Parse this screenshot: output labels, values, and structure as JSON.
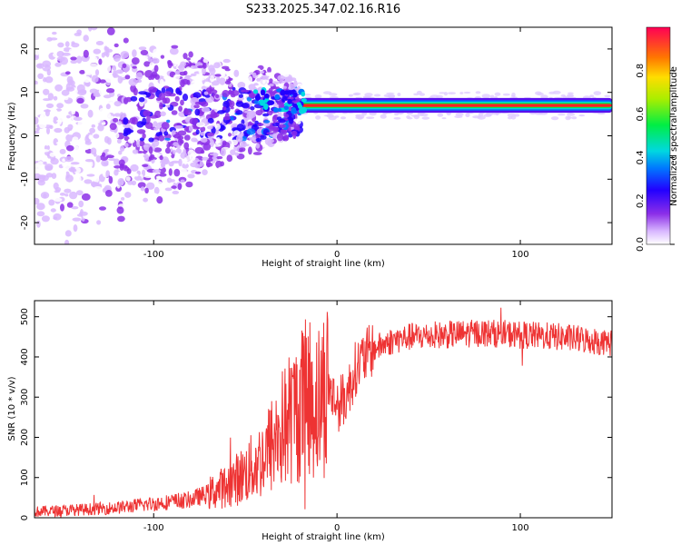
{
  "title": "S233.2025.347.02.16.R16",
  "chart_data": [
    {
      "type": "heatmap",
      "name": "spectrogram",
      "xlabel": "Height of straight line (km)",
      "ylabel": "Frequency (Hz)",
      "xlim": [
        -165,
        150
      ],
      "ylim": [
        -25,
        25
      ],
      "xticks": [
        -100,
        0,
        100
      ],
      "yticks": [
        -20,
        -10,
        0,
        10,
        20
      ],
      "colorbar": {
        "label": "Normalized spectral amplitude",
        "range": [
          0,
          1
        ],
        "ticks": [
          0.0,
          0.2,
          0.4,
          0.6,
          0.8
        ]
      },
      "signal_band": {
        "stable_from_km": -20,
        "frequency_hz": 7,
        "note": "narrow strong carrier near 7 Hz for heights > -20 km; diffuse noise below"
      }
    },
    {
      "type": "line",
      "name": "snr",
      "xlabel": "Height of straight line (km)",
      "ylabel": "SNR (10 * v/v)",
      "xlim": [
        -165,
        150
      ],
      "ylim": [
        0,
        540
      ],
      "xticks": [
        -100,
        0,
        100
      ],
      "yticks": [
        0,
        100,
        200,
        300,
        400,
        500
      ],
      "color": "#ee3333",
      "series": [
        {
          "name": "SNR",
          "x": [
            -165,
            -140,
            -120,
            -100,
            -80,
            -70,
            -60,
            -50,
            -40,
            -30,
            -20,
            -15,
            -10,
            -5,
            0,
            5,
            10,
            15,
            20,
            30,
            40,
            60,
            80,
            100,
            120,
            150
          ],
          "values": [
            15,
            20,
            25,
            35,
            45,
            60,
            80,
            110,
            150,
            220,
            280,
            300,
            290,
            330,
            280,
            300,
            370,
            400,
            420,
            440,
            450,
            455,
            460,
            455,
            450,
            435
          ]
        }
      ]
    }
  ]
}
